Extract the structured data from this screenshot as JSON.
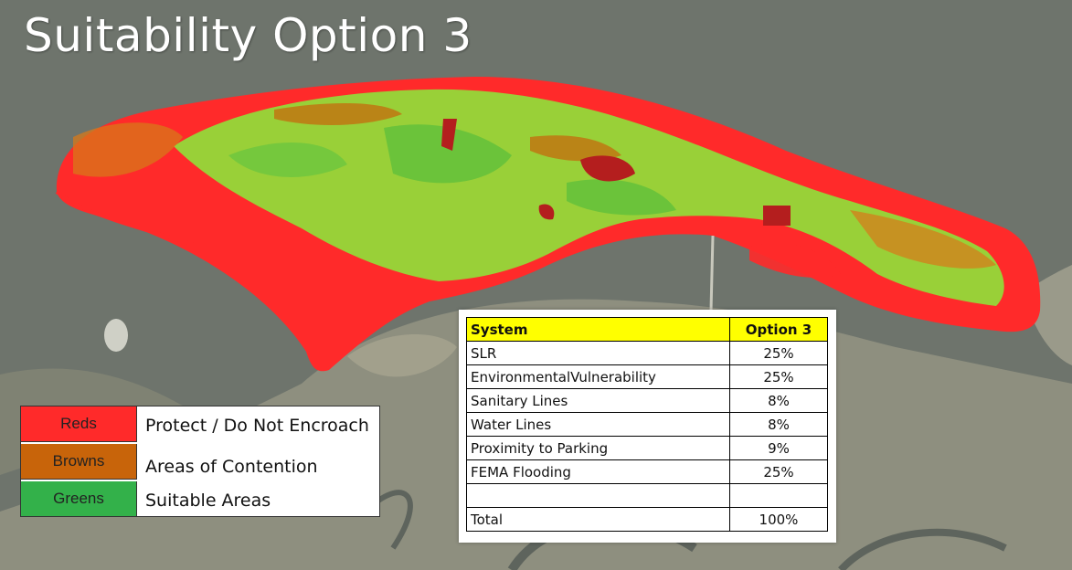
{
  "title": "Suitability Option 3",
  "legend": [
    {
      "swatch_label": "Reds",
      "color": "#ff2a2a",
      "description": "Protect / Do Not Encroach"
    },
    {
      "swatch_label": "Browns",
      "color": "#c8640a",
      "description": "Areas of Contention"
    },
    {
      "swatch_label": "Greens",
      "color": "#33b14a",
      "description": "Suitable Areas"
    }
  ],
  "table": {
    "header": {
      "system": "System",
      "option": "Option 3"
    },
    "rows": [
      {
        "system": "SLR",
        "value": "25%"
      },
      {
        "system": "EnvironmentalVulnerability",
        "value": "25%"
      },
      {
        "system": "Sanitary Lines",
        "value": "8%"
      },
      {
        "system": "Water Lines",
        "value": "8%"
      },
      {
        "system": "Proximity to Parking",
        "value": "9%"
      },
      {
        "system": "FEMA Flooding",
        "value": "25%"
      }
    ],
    "total": {
      "system": "Total",
      "value": "100%"
    }
  },
  "colors": {
    "protect": "#ff2a2a",
    "contention": "#c8640a",
    "suitable": "#8ee23a",
    "water": "#6b7169",
    "marsh": "#8b8c7d"
  }
}
